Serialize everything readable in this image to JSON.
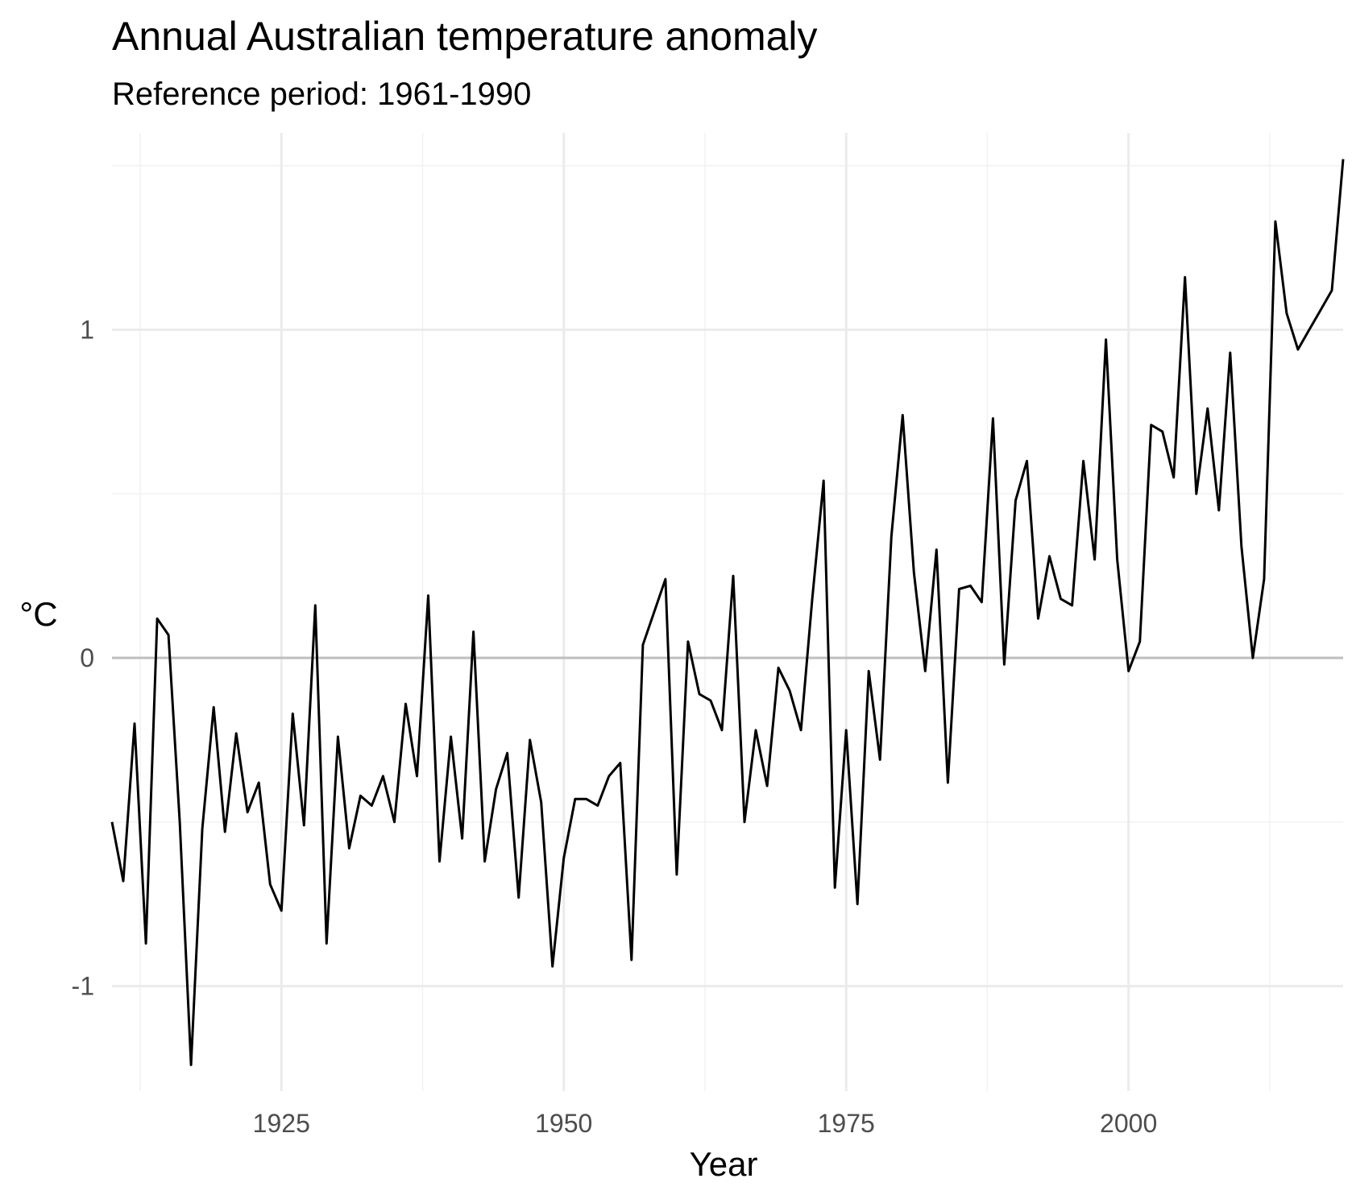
{
  "chart_data": {
    "type": "line",
    "title": "Annual Australian temperature anomaly",
    "subtitle": "Reference period: 1961-1990",
    "xlabel": "Year",
    "ylabel": "°C",
    "xlim": [
      1910,
      2019
    ],
    "ylim": [
      -1.32,
      1.6
    ],
    "x_ticks": [
      1925,
      1950,
      1975,
      2000
    ],
    "y_ticks": [
      -1,
      0,
      1
    ],
    "x_tick_labels": [
      "1925",
      "1950",
      "1975",
      "2000"
    ],
    "y_tick_labels": [
      "-1",
      "0",
      "1"
    ],
    "grid": true,
    "legend": "none",
    "zero_line": true,
    "colors": {
      "line": "#000000",
      "grid_major": "#ebebeb",
      "grid_minor": "#f2f2f2",
      "zero_line": "#bebebe",
      "tick_text": "#4d4d4d"
    },
    "series": [
      {
        "x": [
          1910,
          1911,
          1912,
          1913,
          1914,
          1915,
          1916,
          1917,
          1918,
          1919,
          1920,
          1921,
          1922,
          1923,
          1924,
          1925,
          1926,
          1927,
          1928,
          1929,
          1930,
          1931,
          1932,
          1933,
          1934,
          1935,
          1936,
          1937,
          1938,
          1939,
          1940,
          1941,
          1942,
          1943,
          1944,
          1945,
          1946,
          1947,
          1948,
          1949,
          1950,
          1951,
          1952,
          1953,
          1954,
          1955,
          1956,
          1957,
          1958,
          1959,
          1960,
          1961,
          1962,
          1963,
          1964,
          1965,
          1966,
          1967,
          1968,
          1969,
          1970,
          1971,
          1972,
          1973,
          1974,
          1975,
          1976,
          1977,
          1978,
          1979,
          1980,
          1981,
          1982,
          1983,
          1984,
          1985,
          1986,
          1987,
          1988,
          1989,
          1990,
          1991,
          1992,
          1993,
          1994,
          1995,
          1996,
          1997,
          1998,
          1999,
          2000,
          2001,
          2002,
          2003,
          2004,
          2005,
          2006,
          2007,
          2008,
          2009,
          2010,
          2011,
          2012,
          2013,
          2014,
          2015,
          2016,
          2017,
          2018,
          2019
        ],
        "values": [
          -0.5,
          -0.68,
          -0.2,
          -0.87,
          0.12,
          0.07,
          -0.5,
          -1.24,
          -0.52,
          -0.15,
          -0.53,
          -0.23,
          -0.47,
          -0.38,
          -0.69,
          -0.77,
          -0.17,
          -0.51,
          0.16,
          -0.87,
          -0.24,
          -0.58,
          -0.42,
          -0.45,
          -0.36,
          -0.5,
          -0.14,
          -0.36,
          0.19,
          -0.62,
          -0.24,
          -0.55,
          0.08,
          -0.62,
          -0.4,
          -0.29,
          -0.73,
          -0.25,
          -0.44,
          -0.94,
          -0.61,
          -0.43,
          -0.43,
          -0.45,
          -0.36,
          -0.32,
          -0.92,
          0.04,
          0.14,
          0.24,
          -0.66,
          0.05,
          -0.11,
          -0.13,
          -0.22,
          0.25,
          -0.5,
          -0.22,
          -0.39,
          -0.03,
          -0.1,
          -0.22,
          0.18,
          0.54,
          -0.7,
          -0.22,
          -0.75,
          -0.04,
          -0.31,
          0.37,
          0.74,
          0.26,
          -0.04,
          0.33,
          -0.38,
          0.21,
          0.22,
          0.17,
          0.73,
          -0.02,
          0.48,
          0.6,
          0.12,
          0.31,
          0.18,
          0.16,
          0.6,
          0.3,
          0.97,
          0.3,
          -0.04,
          0.05,
          0.71,
          0.69,
          0.55,
          1.16,
          0.5,
          0.76,
          0.45,
          0.93,
          0.34,
          0.0,
          0.24,
          1.33,
          1.05,
          0.94,
          1.0,
          1.06,
          1.12,
          1.52
        ]
      }
    ]
  }
}
